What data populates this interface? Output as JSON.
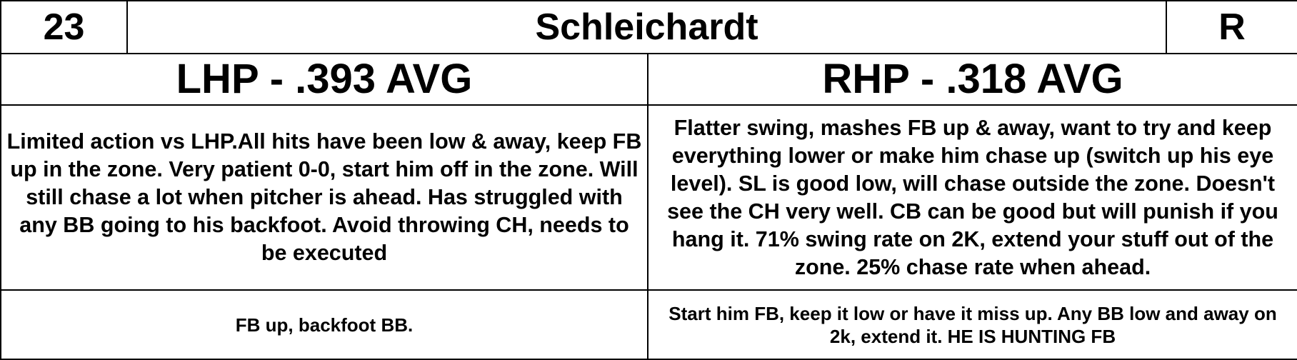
{
  "header": {
    "number": "23",
    "name": "Schleichardt",
    "hand": "R"
  },
  "splits": {
    "lhp": {
      "avg_label": "LHP - .393 AVG",
      "notes": "Limited action vs LHP.All hits have been low & away, keep FB up in the zone. Very patient 0-0, start him off in the zone. Will still chase a lot when pitcher is ahead. Has struggled with any BB going to his backfoot. Avoid throwing CH, needs to be executed",
      "summary": "FB up, backfoot BB."
    },
    "rhp": {
      "avg_label": "RHP - .318 AVG",
      "notes": "Flatter swing, mashes FB up & away, want to try and keep everything lower or make him chase up (switch up his eye level). SL is good low, will chase outside the zone. Doesn't see the CH very well. CB can be good but will punish if you hang it. 71% swing rate on 2K, extend your stuff out of the zone. 25% chase rate when ahead.",
      "summary": "Start him FB, keep it low or have it miss up. Any BB low and away on 2k, extend it. HE IS HUNTING FB"
    }
  }
}
